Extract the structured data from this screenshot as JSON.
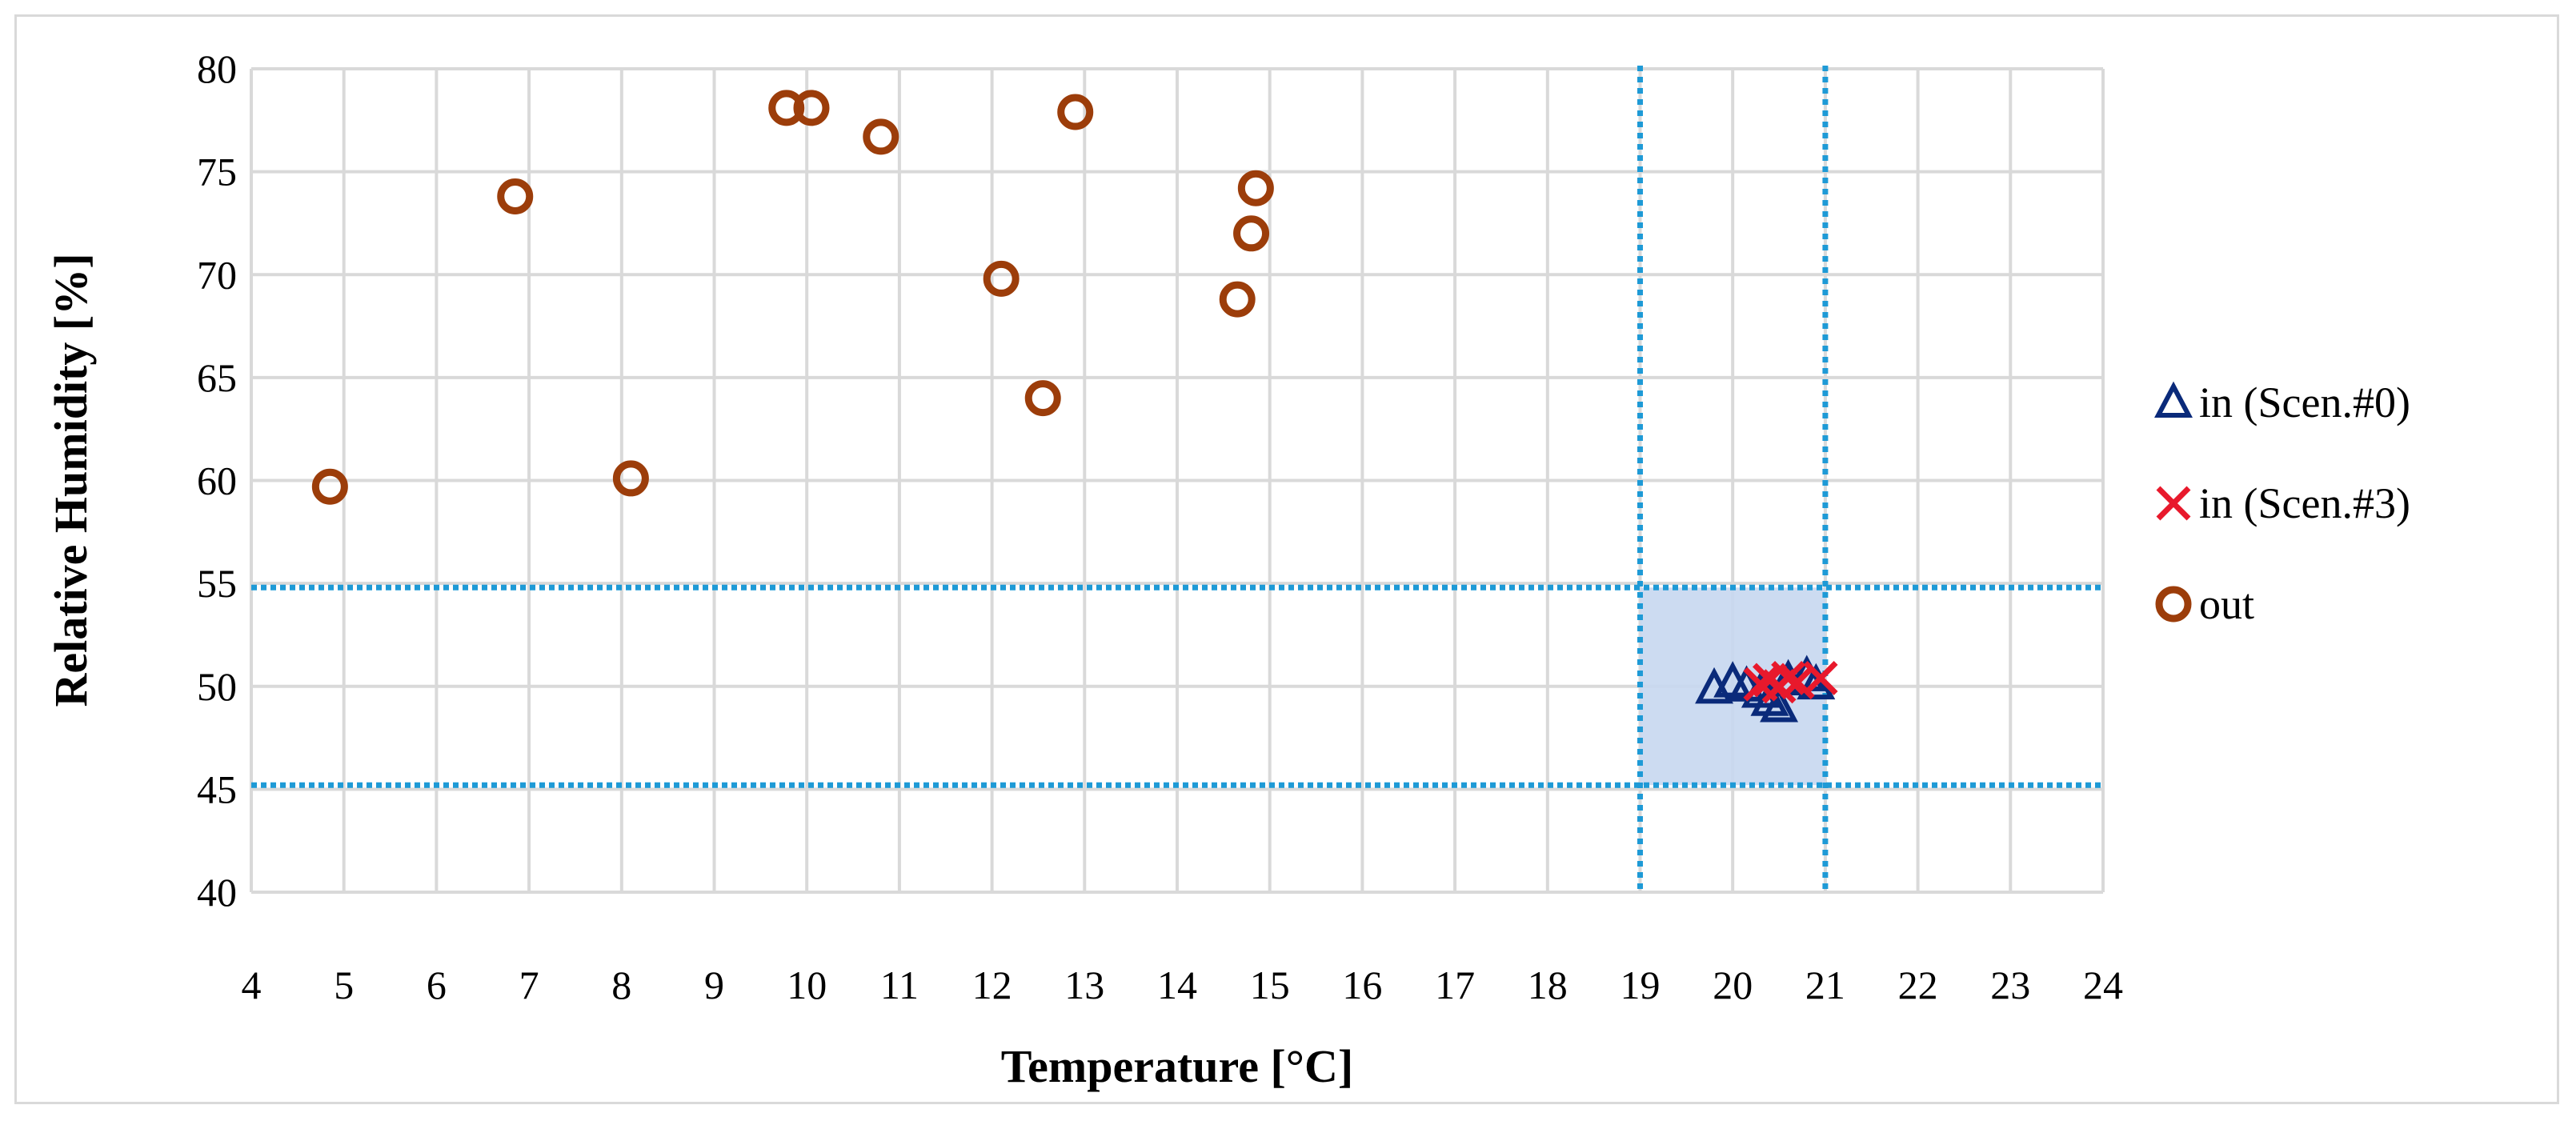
{
  "chart_data": {
    "type": "scatter",
    "title": "",
    "xlabel": "Temperature [°C]",
    "ylabel": "Relative Humidity [%]",
    "xlim": [
      4,
      24
    ],
    "ylim": [
      40,
      80
    ],
    "xticks": [
      4,
      5,
      6,
      7,
      8,
      9,
      10,
      11,
      12,
      13,
      14,
      15,
      16,
      17,
      18,
      19,
      20,
      21,
      22,
      23,
      24
    ],
    "yticks": [
      40,
      45,
      50,
      55,
      60,
      65,
      70,
      75,
      80
    ],
    "grid": true,
    "legend_position": "right",
    "comfort_zone": {
      "x": [
        19,
        21
      ],
      "y": [
        45.2,
        54.8
      ],
      "fill": "#c6d7ef",
      "line_color": "#1e9ad6"
    },
    "series": [
      {
        "name": "in (Scen.#0)",
        "marker": "triangle",
        "color": "#0a2a7a",
        "points": [
          [
            19.8,
            49.9
          ],
          [
            20.0,
            50.2
          ],
          [
            20.15,
            50.0
          ],
          [
            20.3,
            49.7
          ],
          [
            20.4,
            49.3
          ],
          [
            20.5,
            49.0
          ],
          [
            20.6,
            50.3
          ],
          [
            20.8,
            50.5
          ],
          [
            20.9,
            50.1
          ]
        ]
      },
      {
        "name": "in (Scen.#3)",
        "marker": "x",
        "color": "#e8192c",
        "points": [
          [
            20.3,
            50.1
          ],
          [
            20.4,
            50.3
          ],
          [
            20.5,
            50.0
          ],
          [
            20.6,
            50.4
          ],
          [
            20.7,
            50.2
          ],
          [
            20.95,
            50.4
          ]
        ]
      },
      {
        "name": "out",
        "marker": "circle",
        "color": "#9c3d0a",
        "points": [
          [
            4.85,
            59.7
          ],
          [
            6.85,
            73.8
          ],
          [
            8.1,
            60.1
          ],
          [
            9.78,
            78.1
          ],
          [
            10.05,
            78.1
          ],
          [
            10.8,
            76.7
          ],
          [
            12.1,
            69.8
          ],
          [
            12.55,
            64.0
          ],
          [
            12.9,
            77.9
          ],
          [
            14.65,
            68.8
          ],
          [
            14.8,
            72.0
          ],
          [
            14.85,
            74.2
          ]
        ]
      }
    ]
  }
}
